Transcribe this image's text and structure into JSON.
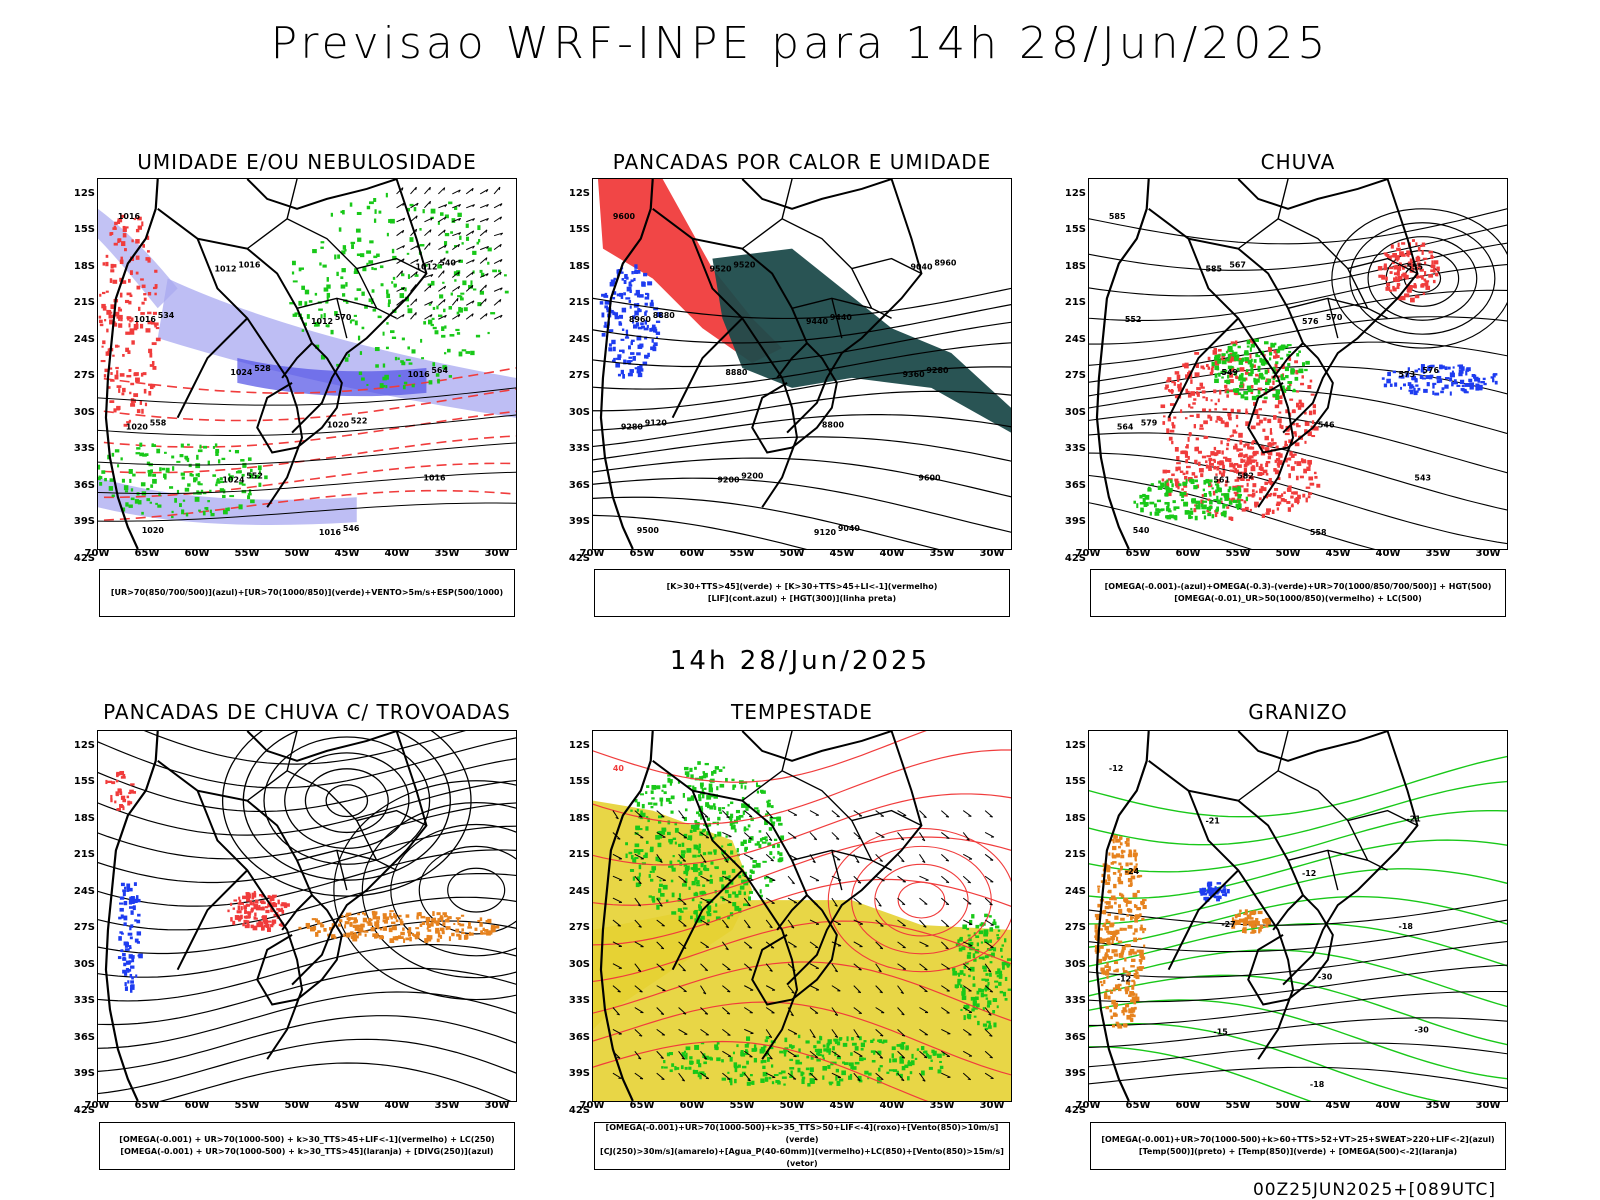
{
  "title": "Previsao WRF-INPE  para 14h 28/Jun/2025",
  "mid_title": "14h 28/Jun/2025",
  "footer": "00Z25JUN2025+[089UTC]",
  "lat_ticks": [
    "12S",
    "15S",
    "18S",
    "21S",
    "24S",
    "27S",
    "30S",
    "33S",
    "36S",
    "39S",
    "42S"
  ],
  "lon_ticks": [
    "70W",
    "65W",
    "60W",
    "55W",
    "50W",
    "45W",
    "40W",
    "35W",
    "30W"
  ],
  "colors": {
    "blue_shade": "#a8a8f0",
    "green": "#19c819",
    "red": "#f03c3c",
    "dark_teal": "#1e4b4b",
    "yellow": "#e6d232",
    "orange": "#e6821e",
    "blue": "#1e3cf0"
  },
  "panels": [
    {
      "title": "UMIDADE E/OU NEBULOSIDADE",
      "legend": [
        "[UR>70(850/700/500)](azul)+[UR>70(1000/850)](verde)+VENTO>5m/s+ESP(500/1000)"
      ],
      "labels": [
        "1016",
        "1012",
        "1012",
        "1016",
        "1020",
        "1024",
        "1016",
        "1012",
        "1016",
        "1024",
        "1020",
        "1016",
        "1020",
        "1016",
        "570",
        "564",
        "558",
        "552",
        "546",
        "540",
        "534",
        "528",
        "522"
      ]
    },
    {
      "title": "PANCADAS POR CALOR E UMIDADE",
      "legend": [
        "[K>30+TTS>45](verde) + [K>30+TTS>45+LI<-1](vermelho)",
        "[LIF](cont.azul) + [HGT(300)](linha preta)"
      ],
      "labels": [
        "9600",
        "9520",
        "9440",
        "9360",
        "9280",
        "9200",
        "9120",
        "9040",
        "8960",
        "8880",
        "8800",
        "9600",
        "9500",
        "9520",
        "9440",
        "9280",
        "9120",
        "9200",
        "9040",
        "8960",
        "8880"
      ]
    },
    {
      "title": "CHUVA",
      "legend": [
        "[OMEGA(-0.001)-(azul)+OMEGA(-0.3)-(verde)+UR>70(1000/850/700/500)] + HGT(500)",
        "[OMEGA(-0.01)_UR>50(1000/850)(vermelho) + LC(500)"
      ],
      "labels": [
        "585",
        "585",
        "576",
        "573",
        "564",
        "561",
        "558",
        "555",
        "552",
        "549",
        "546",
        "543",
        "540",
        "567",
        "570",
        "576",
        "579",
        "582"
      ]
    },
    {
      "title": "PANCADAS DE CHUVA C/ TROVOADAS",
      "legend": [
        "[OMEGA(-0.001) + UR>70(1000-500) + k>30_TTS>45+LIF<-1](vermelho) + LC(250)",
        "[OMEGA(-0.001) + UR>70(1000-500) + k>30_TTS>45](laranja) + [DIVG(250)](azul)"
      ],
      "labels": []
    },
    {
      "title": "TEMPESTADE",
      "legend": [
        "[OMEGA(-0.001)+UR>70(1000-500)+k>35_TTS>50+LIF<-4](roxo)+[Vento(850)>10m/s](verde)",
        "[CJ(250)>30m/s](amarelo)+[Agua_P(40-60mm)](vermelho)+LC(850)+[Vento(850)>15m/s](vetor)"
      ],
      "labels": [
        "40"
      ]
    },
    {
      "title": "GRANIZO",
      "legend": [
        "[OMEGA(-0.001)+UR>70(1000-500)+k>60+TTS>52+VT>25+SWEAT>220+LIF<-2](azul)",
        "[Temp(500)](preto) + [Temp(850)](verde) + [OMEGA(500)<-2](laranja)"
      ],
      "labels": [
        "-12",
        "-21",
        "-12",
        "-18",
        "-12",
        "-15",
        "-18",
        "-21",
        "-24",
        "-27",
        "-30",
        "-30"
      ]
    }
  ]
}
